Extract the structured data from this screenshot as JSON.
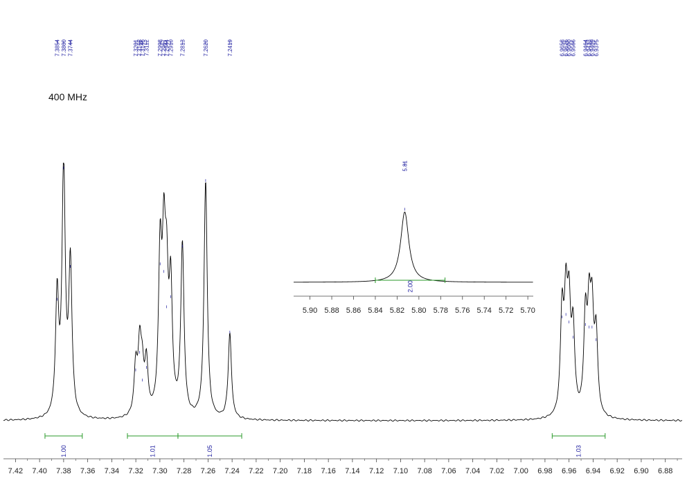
{
  "header": {
    "frequency": "400 MHz"
  },
  "chart_data": [
    {
      "type": "line",
      "title": "",
      "xlabel": "",
      "ylabel": "",
      "xlim": [
        7.43,
        6.866
      ],
      "x_ticks": [
        "7.42",
        "7.40",
        "7.38",
        "7.36",
        "7.34",
        "7.32",
        "7.30",
        "7.28",
        "7.26",
        "7.24",
        "7.22",
        "7.20",
        "7.18",
        "7.16",
        "7.14",
        "7.12",
        "7.10",
        "7.08",
        "7.06",
        "7.04",
        "7.02",
        "7.00",
        "6.98",
        "6.96",
        "6.94",
        "6.92",
        "6.90",
        "6.88"
      ],
      "peak_labels": [
        "7.3854",
        "7.3800",
        "7.3744",
        "7.3201",
        "7.3168",
        "7.3146",
        "7.3112",
        "7.2998",
        "7.2967",
        "7.2944",
        "7.2910",
        "7.2813",
        "7.2620",
        "7.2419",
        "6.9658",
        "6.9626",
        "6.9600",
        "6.9566",
        "6.9464",
        "6.9433",
        "6.9409",
        "6.9375"
      ],
      "peaks": [
        {
          "x": 7.3854,
          "h": 0.47
        },
        {
          "x": 7.38,
          "h": 0.99
        },
        {
          "x": 7.3744,
          "h": 0.6
        },
        {
          "x": 7.3201,
          "h": 0.19
        },
        {
          "x": 7.3168,
          "h": 0.26
        },
        {
          "x": 7.3146,
          "h": 0.15
        },
        {
          "x": 7.3112,
          "h": 0.2
        },
        {
          "x": 7.2998,
          "h": 0.61
        },
        {
          "x": 7.2967,
          "h": 0.58
        },
        {
          "x": 7.2944,
          "h": 0.44
        },
        {
          "x": 7.291,
          "h": 0.48
        },
        {
          "x": 7.2813,
          "h": 0.68
        },
        {
          "x": 7.262,
          "h": 0.94
        },
        {
          "x": 7.2419,
          "h": 0.34
        },
        {
          "x": 6.9658,
          "h": 0.4
        },
        {
          "x": 6.9626,
          "h": 0.41
        },
        {
          "x": 6.96,
          "h": 0.38
        },
        {
          "x": 6.9566,
          "h": 0.32
        },
        {
          "x": 6.9464,
          "h": 0.37
        },
        {
          "x": 6.9433,
          "h": 0.36
        },
        {
          "x": 6.9409,
          "h": 0.36
        },
        {
          "x": 6.9375,
          "h": 0.31
        }
      ],
      "integrals": [
        {
          "from": 7.3955,
          "to": 7.3645,
          "label": "1.00"
        },
        {
          "from": 7.327,
          "to": 7.285,
          "label": "1.01"
        },
        {
          "from": 7.285,
          "to": 7.232,
          "label": "1.05"
        },
        {
          "from": 6.974,
          "to": 6.93,
          "label": "1.03"
        }
      ]
    },
    {
      "type": "line",
      "title": "",
      "xlabel": "",
      "ylabel": "",
      "xlim": [
        5.915,
        5.695
      ],
      "x_ticks": [
        "5.90",
        "5.88",
        "5.86",
        "5.84",
        "5.82",
        "5.80",
        "5.78",
        "5.76",
        "5.74",
        "5.72",
        "5.70"
      ],
      "peak_labels": [
        "5.81"
      ],
      "peaks": [
        {
          "x": 5.813,
          "h": 0.95
        }
      ],
      "integrals": [
        {
          "from": 5.84,
          "to": 5.776,
          "label": "2.00"
        }
      ]
    }
  ]
}
